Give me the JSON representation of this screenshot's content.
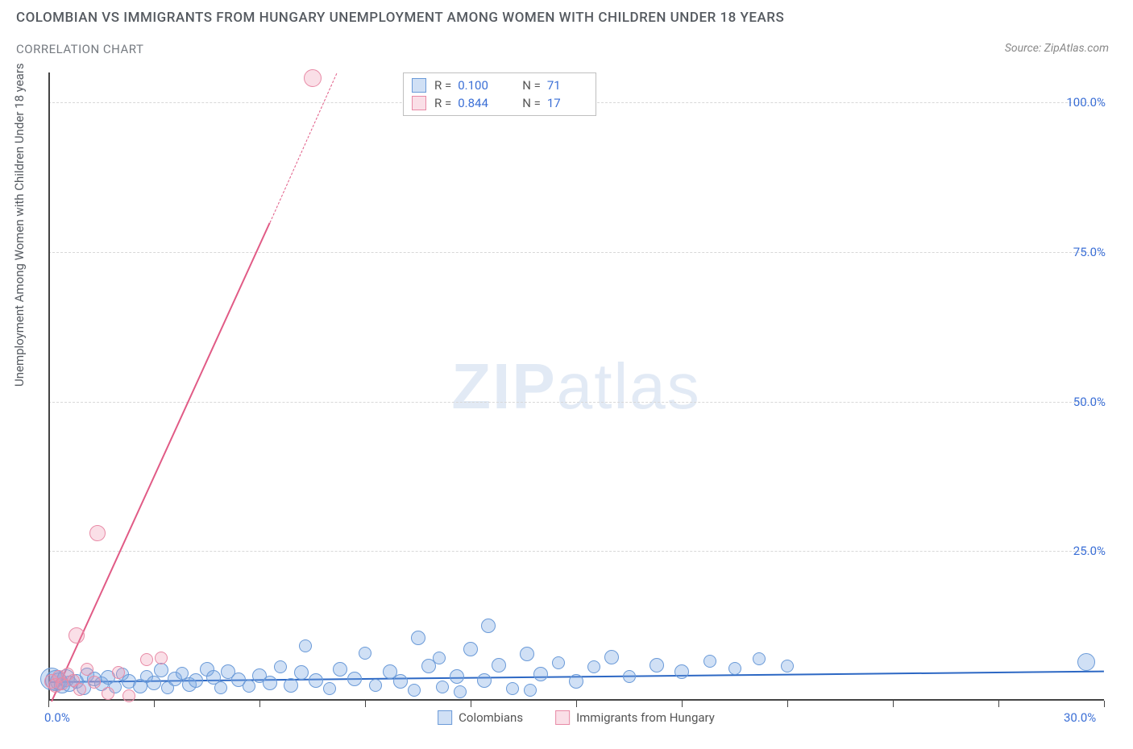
{
  "title": "COLOMBIAN VS IMMIGRANTS FROM HUNGARY UNEMPLOYMENT AMONG WOMEN WITH CHILDREN UNDER 18 YEARS",
  "subtitle": "CORRELATION CHART",
  "source_label": "Source: ZipAtlas.com",
  "y_axis_label": "Unemployment Among Women with Children Under 18 years",
  "watermark_bold": "ZIP",
  "watermark_light": "atlas",
  "chart": {
    "type": "scatter",
    "background_color": "#ffffff",
    "grid_color": "#d8d8d8",
    "axis_color": "#444444",
    "tick_label_color": "#3b6fd6",
    "tick_fontsize": 15,
    "xlim": [
      0,
      30
    ],
    "ylim": [
      0,
      105
    ],
    "x_tick_positions": [
      0,
      3,
      6,
      9,
      12,
      15,
      18,
      21,
      24,
      27,
      30
    ],
    "x_tick_labels": {
      "left": "0.0%",
      "right": "30.0%"
    },
    "y_ticks": [
      {
        "v": 25,
        "label": "25.0%"
      },
      {
        "v": 50,
        "label": "50.0%"
      },
      {
        "v": 75,
        "label": "75.0%"
      },
      {
        "v": 100,
        "label": "100.0%"
      }
    ],
    "series": [
      {
        "name": "Colombians",
        "color_fill": "rgba(120,165,225,0.35)",
        "color_stroke": "#6a9ad8",
        "marker": "circle",
        "base_radius": 9,
        "R": "0.100",
        "N": "71",
        "trend": {
          "x1": 0,
          "y1": 3.2,
          "x2": 30,
          "y2": 5.0,
          "color": "#2d68c4",
          "width": 2,
          "dash": false
        },
        "points": [
          {
            "x": 0.1,
            "y": 3.6,
            "r": 14
          },
          {
            "x": 0.2,
            "y": 3.4,
            "r": 13
          },
          {
            "x": 0.3,
            "y": 3.2,
            "r": 11
          },
          {
            "x": 0.4,
            "y": 2.5,
            "r": 10
          },
          {
            "x": 0.5,
            "y": 3.8,
            "r": 11
          },
          {
            "x": 0.6,
            "y": 2.8,
            "r": 10
          },
          {
            "x": 0.8,
            "y": 3.2,
            "r": 9
          },
          {
            "x": 1.0,
            "y": 2.2,
            "r": 9
          },
          {
            "x": 1.1,
            "y": 4.3,
            "r": 9
          },
          {
            "x": 1.3,
            "y": 3.6,
            "r": 9
          },
          {
            "x": 1.5,
            "y": 2.8,
            "r": 9
          },
          {
            "x": 1.7,
            "y": 3.9,
            "r": 9
          },
          {
            "x": 1.9,
            "y": 2.3,
            "r": 8
          },
          {
            "x": 2.1,
            "y": 4.5,
            "r": 8
          },
          {
            "x": 2.3,
            "y": 3.2,
            "r": 9
          },
          {
            "x": 2.6,
            "y": 2.4,
            "r": 9
          },
          {
            "x": 2.8,
            "y": 4.1,
            "r": 8
          },
          {
            "x": 3.0,
            "y": 3.0,
            "r": 9
          },
          {
            "x": 3.2,
            "y": 5.1,
            "r": 9
          },
          {
            "x": 3.4,
            "y": 2.2,
            "r": 8
          },
          {
            "x": 3.6,
            "y": 3.7,
            "r": 9
          },
          {
            "x": 3.8,
            "y": 4.6,
            "r": 8
          },
          {
            "x": 4.0,
            "y": 2.7,
            "r": 9
          },
          {
            "x": 4.2,
            "y": 3.3,
            "r": 9
          },
          {
            "x": 4.5,
            "y": 5.3,
            "r": 9
          },
          {
            "x": 4.7,
            "y": 3.9,
            "r": 9
          },
          {
            "x": 4.9,
            "y": 2.1,
            "r": 8
          },
          {
            "x": 5.1,
            "y": 4.8,
            "r": 9
          },
          {
            "x": 5.4,
            "y": 3.5,
            "r": 9
          },
          {
            "x": 5.7,
            "y": 2.4,
            "r": 8
          },
          {
            "x": 6.0,
            "y": 4.2,
            "r": 9
          },
          {
            "x": 6.3,
            "y": 3.0,
            "r": 9
          },
          {
            "x": 6.6,
            "y": 5.6,
            "r": 8
          },
          {
            "x": 6.9,
            "y": 2.5,
            "r": 9
          },
          {
            "x": 7.2,
            "y": 4.7,
            "r": 9
          },
          {
            "x": 7.3,
            "y": 9.2,
            "r": 8
          },
          {
            "x": 7.6,
            "y": 3.4,
            "r": 9
          },
          {
            "x": 8.0,
            "y": 2.0,
            "r": 8
          },
          {
            "x": 8.3,
            "y": 5.2,
            "r": 9
          },
          {
            "x": 8.7,
            "y": 3.7,
            "r": 9
          },
          {
            "x": 9.0,
            "y": 8.0,
            "r": 8
          },
          {
            "x": 9.3,
            "y": 2.5,
            "r": 8
          },
          {
            "x": 9.7,
            "y": 4.9,
            "r": 9
          },
          {
            "x": 10.0,
            "y": 3.2,
            "r": 9
          },
          {
            "x": 10.4,
            "y": 1.7,
            "r": 8
          },
          {
            "x": 10.5,
            "y": 10.5,
            "r": 9
          },
          {
            "x": 10.8,
            "y": 5.8,
            "r": 9
          },
          {
            "x": 11.1,
            "y": 7.1,
            "r": 8
          },
          {
            "x": 11.2,
            "y": 2.3,
            "r": 8
          },
          {
            "x": 11.6,
            "y": 4.1,
            "r": 9
          },
          {
            "x": 11.7,
            "y": 1.5,
            "r": 8
          },
          {
            "x": 12.0,
            "y": 8.6,
            "r": 9
          },
          {
            "x": 12.4,
            "y": 3.4,
            "r": 9
          },
          {
            "x": 12.5,
            "y": 12.5,
            "r": 9
          },
          {
            "x": 12.8,
            "y": 5.9,
            "r": 9
          },
          {
            "x": 13.2,
            "y": 2.0,
            "r": 8
          },
          {
            "x": 13.6,
            "y": 7.8,
            "r": 9
          },
          {
            "x": 13.7,
            "y": 1.7,
            "r": 8
          },
          {
            "x": 14.0,
            "y": 4.5,
            "r": 9
          },
          {
            "x": 14.5,
            "y": 6.3,
            "r": 8
          },
          {
            "x": 15.0,
            "y": 3.2,
            "r": 9
          },
          {
            "x": 15.5,
            "y": 5.6,
            "r": 8
          },
          {
            "x": 16.0,
            "y": 7.3,
            "r": 9
          },
          {
            "x": 16.5,
            "y": 4.0,
            "r": 8
          },
          {
            "x": 17.3,
            "y": 5.9,
            "r": 9
          },
          {
            "x": 18.0,
            "y": 4.8,
            "r": 9
          },
          {
            "x": 18.8,
            "y": 6.6,
            "r": 8
          },
          {
            "x": 19.5,
            "y": 5.4,
            "r": 8
          },
          {
            "x": 20.2,
            "y": 7.0,
            "r": 8
          },
          {
            "x": 21.0,
            "y": 5.8,
            "r": 8
          },
          {
            "x": 29.5,
            "y": 6.5,
            "r": 11
          }
        ]
      },
      {
        "name": "Immigrants from Hungary",
        "color_fill": "rgba(240,150,175,0.30)",
        "color_stroke": "#e88aa6",
        "marker": "circle",
        "base_radius": 9,
        "R": "0.844",
        "N": "17",
        "trend": {
          "x1": 0.1,
          "y1": -1.5,
          "x2": 8.2,
          "y2": 105,
          "color": "#e15b86",
          "width": 2,
          "dash_from_y": 80
        },
        "points": [
          {
            "x": 0.1,
            "y": 3.2,
            "r": 9
          },
          {
            "x": 0.2,
            "y": 2.5,
            "r": 9
          },
          {
            "x": 0.3,
            "y": 4.0,
            "r": 8
          },
          {
            "x": 0.4,
            "y": 2.8,
            "r": 8
          },
          {
            "x": 0.55,
            "y": 4.5,
            "r": 8
          },
          {
            "x": 0.7,
            "y": 3.3,
            "r": 8
          },
          {
            "x": 0.8,
            "y": 10.9,
            "r": 10
          },
          {
            "x": 0.9,
            "y": 1.9,
            "r": 8
          },
          {
            "x": 1.1,
            "y": 5.2,
            "r": 8
          },
          {
            "x": 1.3,
            "y": 3.1,
            "r": 8
          },
          {
            "x": 1.4,
            "y": 28.0,
            "r": 10
          },
          {
            "x": 1.7,
            "y": 1.2,
            "r": 8
          },
          {
            "x": 2.0,
            "y": 4.7,
            "r": 8
          },
          {
            "x": 2.3,
            "y": 0.8,
            "r": 8
          },
          {
            "x": 2.8,
            "y": 6.8,
            "r": 8
          },
          {
            "x": 3.2,
            "y": 7.2,
            "r": 8
          },
          {
            "x": 7.5,
            "y": 104.0,
            "r": 11
          }
        ]
      }
    ],
    "legend_top": {
      "rows": [
        {
          "swatch": "blue",
          "r_label": "R =",
          "r": "0.100",
          "n_label": "N =",
          "n": "71"
        },
        {
          "swatch": "pink",
          "r_label": "R =",
          "r": "0.844",
          "n_label": "N =",
          "n": "17"
        }
      ]
    },
    "legend_bottom": [
      {
        "swatch": "blue",
        "label": "Colombians"
      },
      {
        "swatch": "pink",
        "label": "Immigrants from Hungary"
      }
    ]
  }
}
